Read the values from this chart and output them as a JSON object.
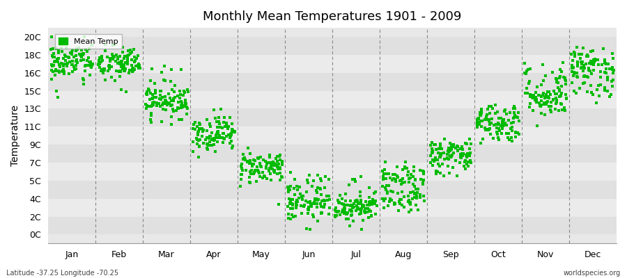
{
  "title": "Monthly Mean Temperatures 1901 - 2009",
  "ylabel": "Temperature",
  "xlabel_labels": [
    "Jan",
    "Feb",
    "Mar",
    "Apr",
    "May",
    "Jun",
    "Jul",
    "Aug",
    "Sep",
    "Oct",
    "Nov",
    "Dec"
  ],
  "ytick_labels": [
    "0C",
    "2C",
    "4C",
    "5C",
    "7C",
    "9C",
    "11C",
    "13C",
    "15C",
    "16C",
    "18C",
    "20C"
  ],
  "ytick_positions": [
    0,
    1,
    2,
    3,
    4,
    5,
    6,
    7,
    8,
    9,
    10,
    11
  ],
  "ytick_values": [
    0,
    2,
    4,
    5,
    7,
    9,
    11,
    13,
    15,
    16,
    18,
    20
  ],
  "ylim": [
    -0.5,
    11.5
  ],
  "legend_label": "Mean Temp",
  "dot_color": "#00BB00",
  "bg_color": "#e8e8e8",
  "stripe_colors": [
    "#e0e0e0",
    "#ebebeb"
  ],
  "footer_left": "Latitude -37.25 Longitude -70.25",
  "footer_right": "worldspecies.org",
  "monthly_means_raw": [
    17.2,
    17.0,
    14.0,
    10.3,
    6.5,
    3.5,
    3.2,
    4.5,
    7.8,
    11.5,
    14.5,
    16.5
  ],
  "monthly_stds_raw": [
    1.1,
    1.0,
    1.0,
    1.0,
    0.9,
    1.0,
    0.9,
    1.0,
    1.0,
    1.1,
    1.2,
    1.1
  ],
  "n_years": 109,
  "seed": 42
}
